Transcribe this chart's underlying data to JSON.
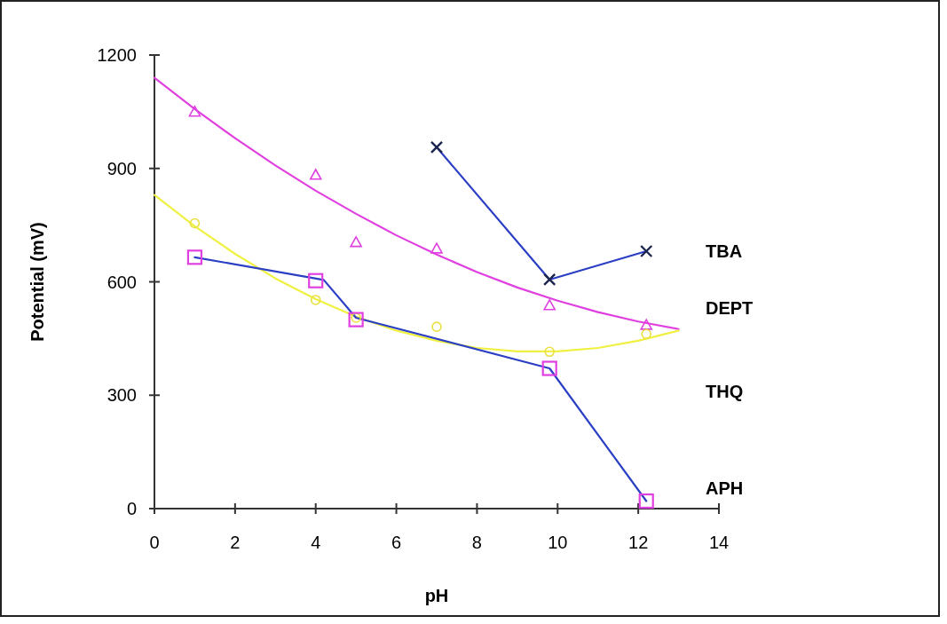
{
  "chart_data": {
    "type": "line",
    "xlabel": "pH",
    "ylabel": "Potential (mV)",
    "xlim": [
      0,
      14
    ],
    "xticks": [
      0,
      2,
      4,
      6,
      8,
      10,
      12,
      14
    ],
    "ylim": [
      0,
      1200
    ],
    "yticks": [
      0,
      300,
      600,
      900,
      1200
    ],
    "grid": false,
    "legend": "right",
    "line_style": "solid",
    "series": [
      {
        "color": "#2b3fc4",
        "marker": "none",
        "x": [
          7,
          9.8,
          12.2
        ],
        "values": [
          956,
          606,
          681
        ]
      },
      {
        "color": "#e040e0",
        "marker": "none",
        "x": [
          0,
          1,
          2,
          3,
          4,
          5,
          6,
          7,
          8,
          9,
          10,
          11,
          12,
          13
        ],
        "values": [
          1140,
          1057,
          980,
          908,
          841,
          780,
          723,
          672,
          626,
          585,
          550,
          520,
          495,
          475
        ]
      },
      {
        "color": "#f0f040",
        "marker": "none",
        "x": [
          0,
          1,
          2,
          3,
          4,
          5,
          6,
          7,
          8,
          9,
          10,
          11,
          12,
          13
        ],
        "values": [
          830,
          747,
          674,
          609,
          554,
          508,
          471,
          444,
          425,
          416,
          416,
          425,
          444,
          471
        ]
      },
      {
        "color": "#2b3fc4",
        "marker": "none",
        "x": [
          1,
          4.2,
          5,
          9.8,
          12.2
        ],
        "values": [
          665,
          605,
          505,
          371,
          20
        ]
      },
      {
        "name": "TBA",
        "type": "scatter",
        "color": "#1c2550",
        "marker": "cross",
        "x": [
          7,
          9.8,
          12.2
        ],
        "values": [
          956,
          606,
          681
        ]
      },
      {
        "name": "DEPT",
        "type": "scatter",
        "color": "#e040e0",
        "marker": "triangle",
        "x": [
          1,
          4,
          5,
          7,
          9.8,
          12.2
        ],
        "values": [
          1050,
          883,
          705,
          688,
          538,
          486
        ]
      },
      {
        "name": "THQ",
        "type": "scatter",
        "color": "#e8e040",
        "marker": "circle",
        "x": [
          1,
          4,
          5,
          7,
          9.8,
          12.2
        ],
        "values": [
          755,
          552,
          505,
          481,
          415,
          462
        ]
      },
      {
        "name": "APH",
        "type": "scatter",
        "color": "#e040e0",
        "marker": "square",
        "x": [
          1,
          4,
          5,
          9.8,
          12.2
        ],
        "values": [
          665,
          603,
          500,
          371,
          20
        ]
      }
    ]
  }
}
